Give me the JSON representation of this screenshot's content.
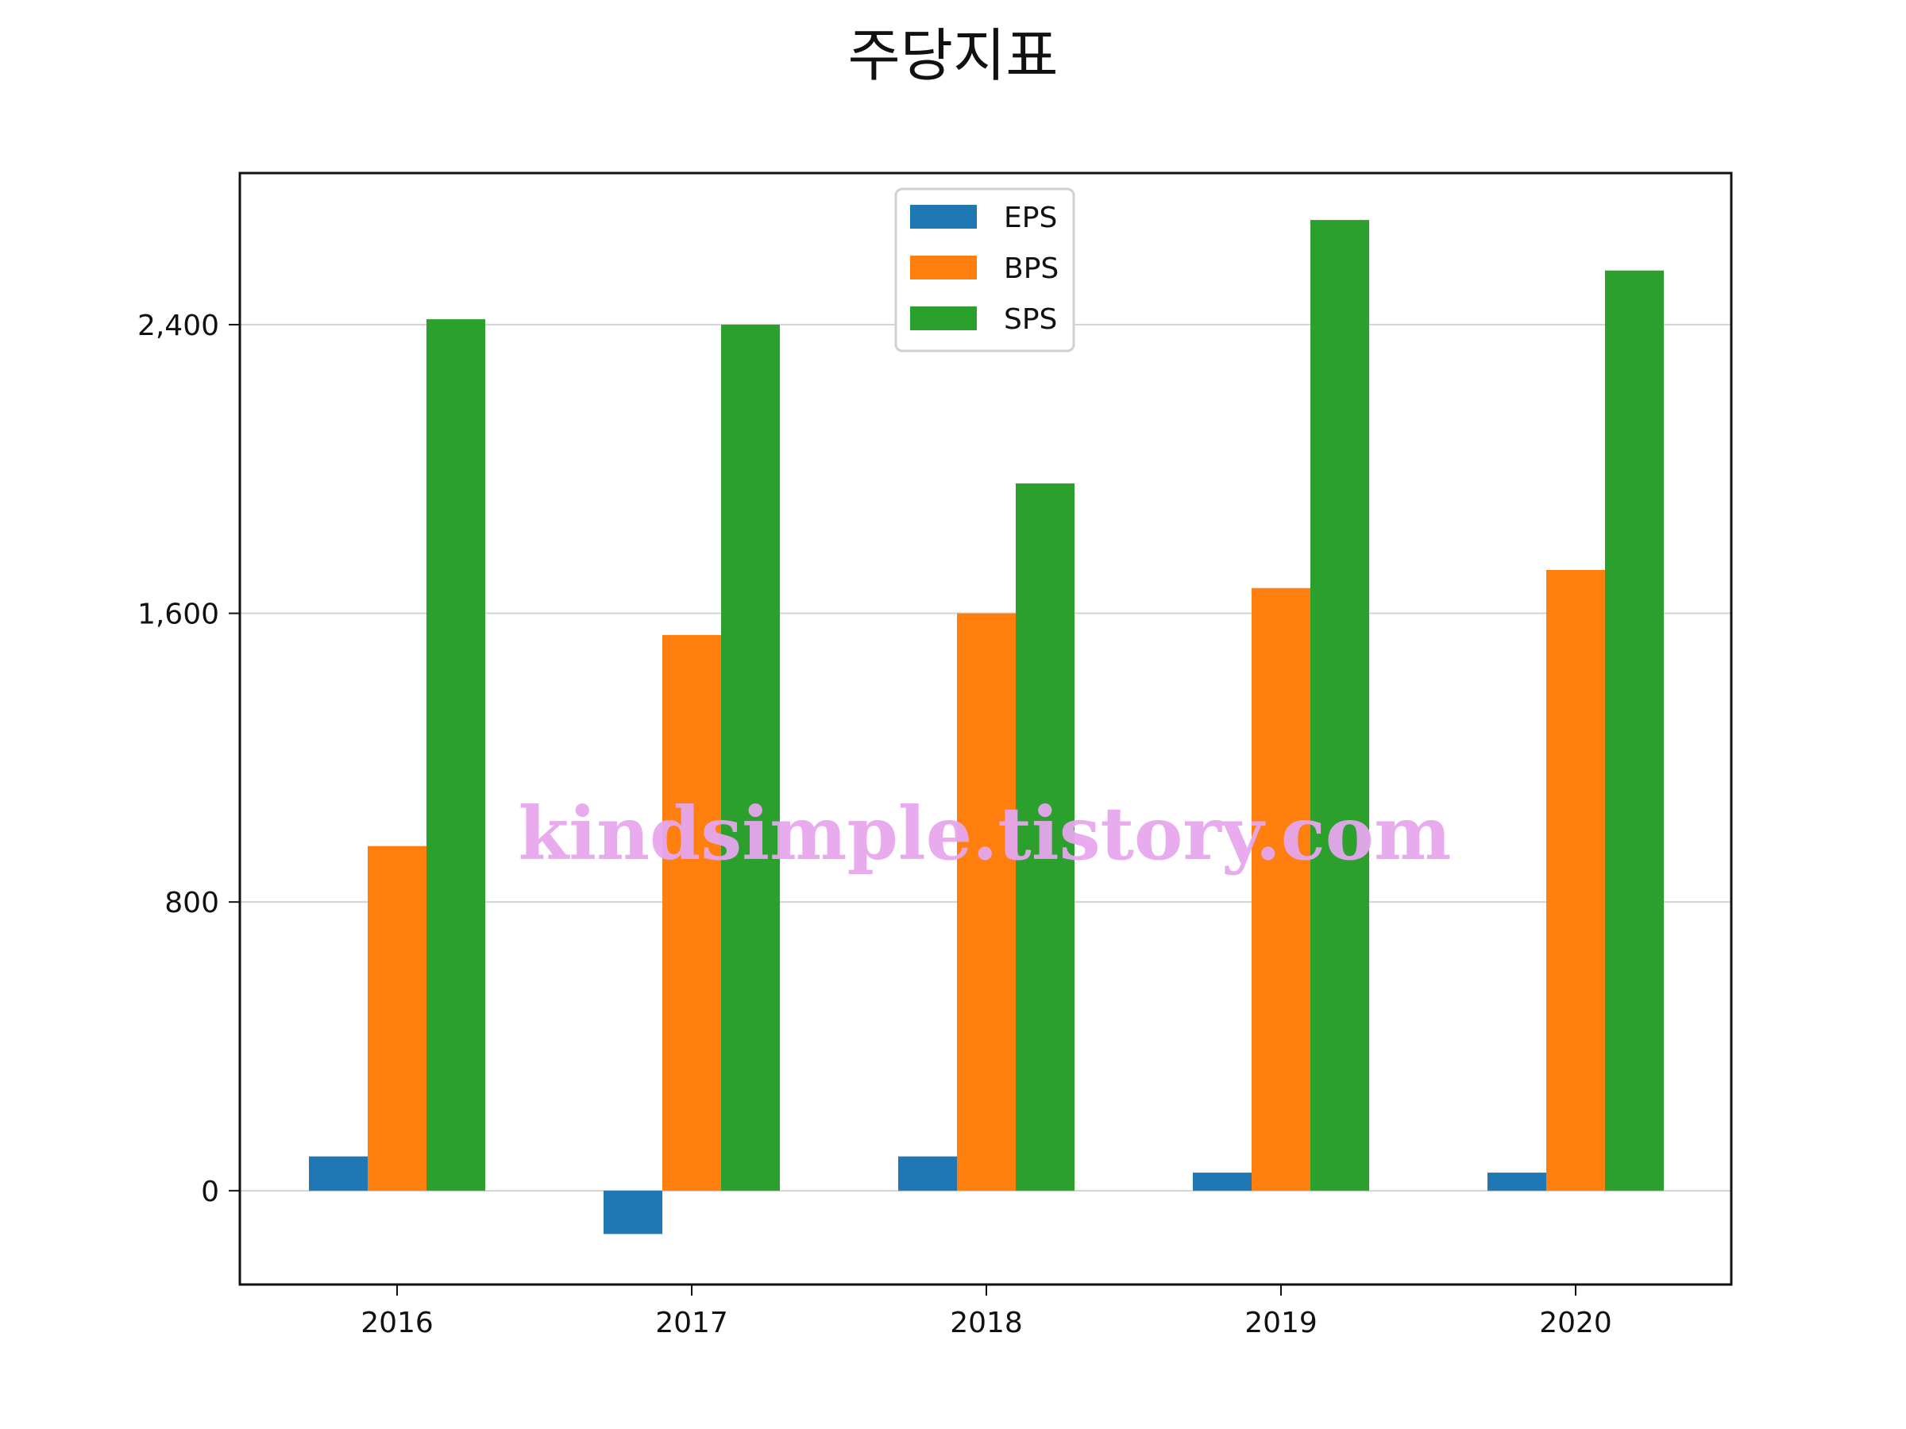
{
  "page": {
    "watermark": "kindsimple.tistory.com"
  },
  "chart_data": {
    "type": "bar",
    "title": "주당지표",
    "categories": [
      "2016",
      "2017",
      "2018",
      "2019",
      "2020"
    ],
    "series": [
      {
        "name": "EPS",
        "color": "#1f77b4",
        "values": [
          95,
          -120,
          95,
          50,
          50
        ]
      },
      {
        "name": "BPS",
        "color": "#ff7f0e",
        "values": [
          955,
          1540,
          1600,
          1670,
          1720
        ]
      },
      {
        "name": "SPS",
        "color": "#2ca02c",
        "values": [
          2415,
          2400,
          1960,
          2690,
          2550
        ]
      }
    ],
    "ylim": [
      -260,
      2820
    ],
    "yticks": [
      0,
      800,
      1600,
      2400
    ],
    "ytick_labels": [
      "0",
      "800",
      "1,600",
      "2,400"
    ],
    "grid": true,
    "legend_position": "top-center"
  }
}
